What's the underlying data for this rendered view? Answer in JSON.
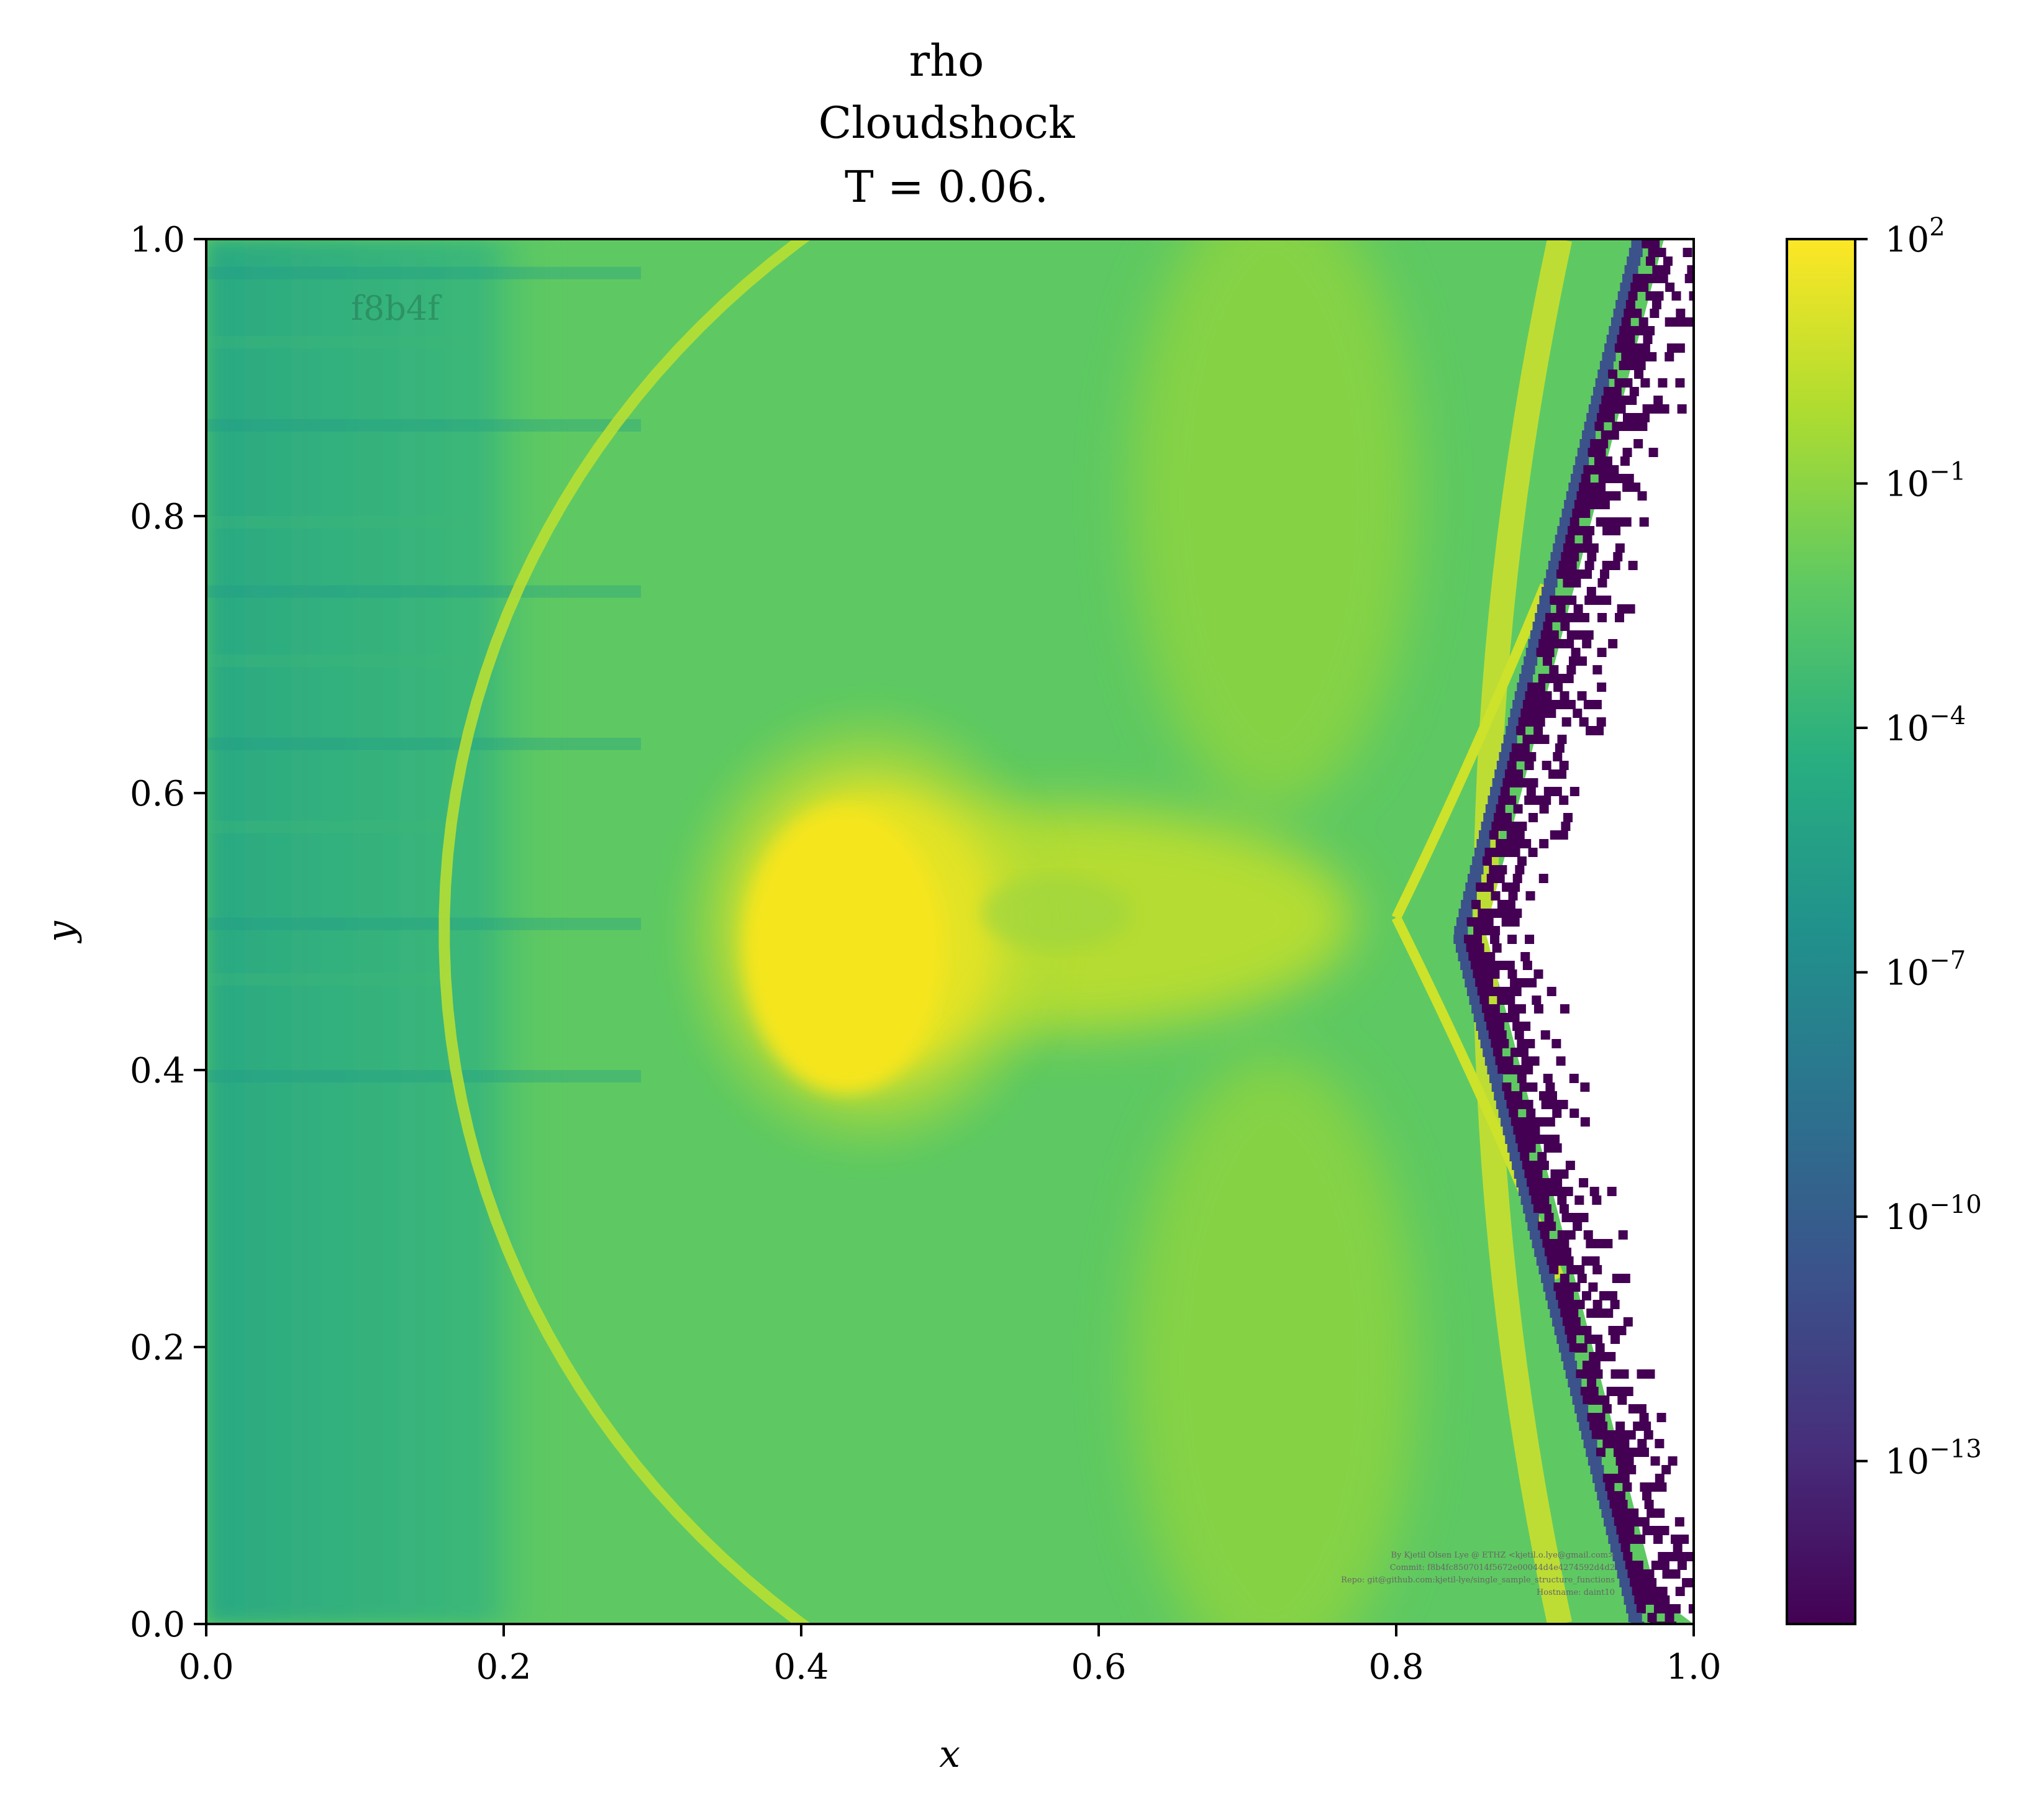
{
  "chart_data": {
    "type": "heatmap",
    "title_lines": [
      "rho",
      "Cloudshock",
      "T = 0.06."
    ],
    "xlabel": "x",
    "ylabel": "y",
    "xlim": [
      0.0,
      1.0
    ],
    "ylim": [
      0.0,
      1.0
    ],
    "xticks": [
      "0.0",
      "0.2",
      "0.4",
      "0.6",
      "0.8",
      "1.0"
    ],
    "yticks": [
      "0.0",
      "0.2",
      "0.4",
      "0.6",
      "0.8",
      "1.0"
    ],
    "colorbar": {
      "scale": "log",
      "colormap": "viridis",
      "range": [
        1e-15,
        100.0
      ],
      "tick_exponents": [
        "2",
        "−1",
        "−4",
        "−7",
        "−10",
        "−13"
      ],
      "tick_values": [
        2,
        -1,
        -4,
        -7,
        -10,
        -13
      ]
    },
    "features": {
      "cloud_center": [
        0.45,
        0.5
      ],
      "cloud_log10_rho": 1.5,
      "background_log10_rho": -2.5,
      "left_region_log10_rho": -4.5,
      "bow_shock_center": [
        0.8,
        0.5
      ],
      "bow_shock_radius": 0.64,
      "vacuum_edge_x": [
        0.97,
        0.85
      ],
      "colors": {
        "low": "#440154",
        "mid": "#21918c",
        "high": "#fde725"
      }
    },
    "watermark_tag": "f8b4f",
    "attribution": [
      "By Kjetil Olsen Lye @ ETHZ <kjetil.o.lye@gmail.com>",
      "Commit: f8b4fc8507014f5672e00044d4e4274592d4d2",
      "Repo: git@github.com:kjetil-lye/single_sample_structure_functions",
      "Hostname: daint10"
    ]
  }
}
